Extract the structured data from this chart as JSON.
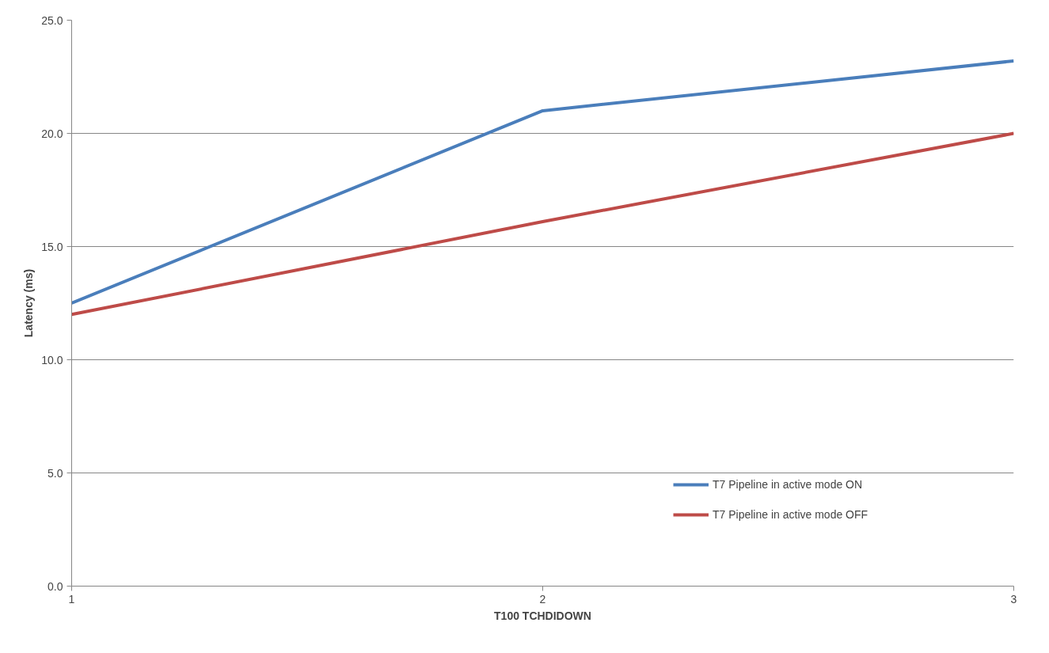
{
  "chart_data": {
    "type": "line",
    "xlabel": "T100 TCHDIDOWN",
    "ylabel": "Latency (ms)",
    "x": [
      1,
      2,
      3
    ],
    "series": [
      {
        "name": "T7 Pipeline in active mode ON",
        "color": "#4a7ebb",
        "values": [
          12.5,
          21.0,
          23.2
        ]
      },
      {
        "name": "T7 Pipeline in active mode OFF",
        "color": "#be4b48",
        "values": [
          12.0,
          16.1,
          20.0
        ]
      }
    ],
    "xlim": [
      1,
      3
    ],
    "xticks": [
      1,
      2,
      3
    ],
    "ylim": [
      0,
      25
    ],
    "yticks": [
      {
        "value": 0,
        "label": "0.0"
      },
      {
        "value": 5,
        "label": "5.0"
      },
      {
        "value": 10,
        "label": "10.0"
      },
      {
        "value": 15,
        "label": "15.0"
      },
      {
        "value": 20,
        "label": "20.0"
      },
      {
        "value": 25,
        "label": "25.0"
      }
    ],
    "grid": "y",
    "legend": "right",
    "marker": "none",
    "line_style": "solid"
  }
}
